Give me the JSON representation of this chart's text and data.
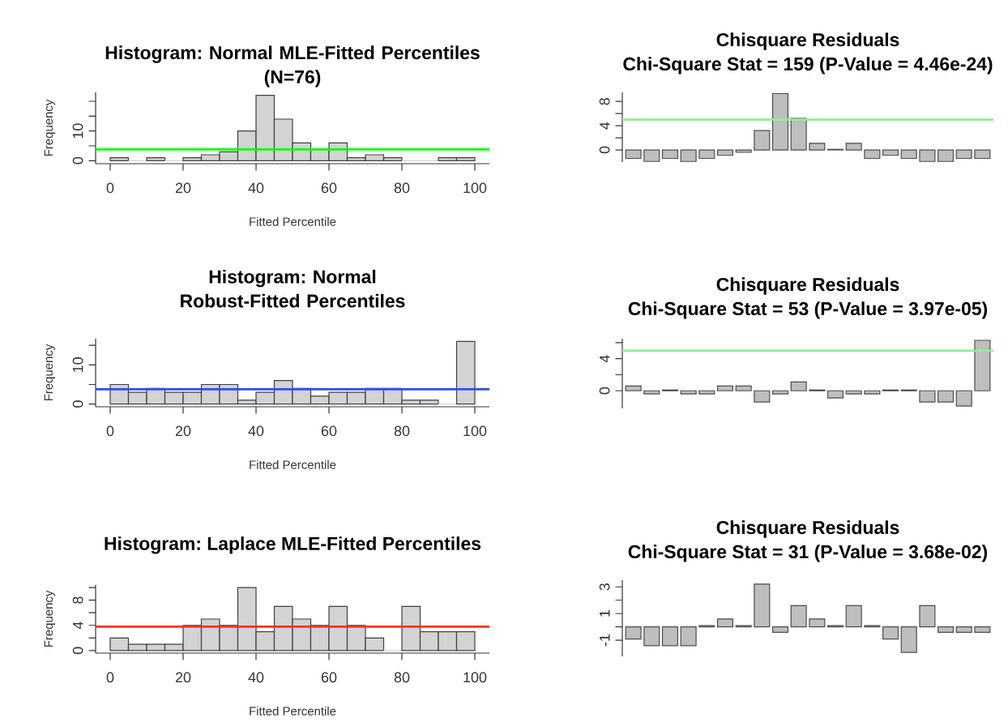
{
  "chart_data": [
    {
      "type": "histogram",
      "title": "Histogram: Normal MLE-Fitted Percentiles",
      "subtitle": "(N=76)",
      "xlabel": "Fitted Percentile",
      "ylabel": "Frequency",
      "color": "#d3d3d3",
      "bins": [
        0,
        5,
        10,
        15,
        20,
        25,
        30,
        35,
        40,
        45,
        50,
        55,
        60,
        65,
        70,
        75,
        80,
        85,
        90,
        95,
        100
      ],
      "values": [
        1,
        0,
        1,
        0,
        1,
        2,
        3,
        10,
        22,
        14,
        6,
        4,
        6,
        1,
        2,
        1,
        0,
        0,
        1,
        1
      ],
      "xlim": [
        -4,
        104
      ],
      "ylim": [
        -1,
        23
      ],
      "xticks": [
        0,
        20,
        40,
        60,
        80,
        100
      ],
      "yticks": [
        0,
        {
          "value": 5,
          "label": null
        },
        10,
        {
          "value": 15,
          "label": null
        },
        {
          "value": 20,
          "label": null
        }
      ],
      "ref_lines": [
        {
          "axis": "y",
          "value": 3.8,
          "color": "#00ff00"
        }
      ]
    },
    {
      "type": "bar",
      "title": "Chisquare Residuals",
      "subtitle": "Chi-Square Stat = 159  (P-Value = 4.46e-24)",
      "color": "#bebebe",
      "categories": [
        null,
        null,
        null,
        null,
        null,
        null,
        null,
        null,
        null,
        null,
        null,
        null,
        null,
        null,
        null,
        null,
        null,
        null,
        null,
        null
      ],
      "values": [
        -1.4,
        -1.9,
        -1.4,
        -1.9,
        -1.4,
        -0.9,
        -0.4,
        3.2,
        9.3,
        5.2,
        1.1,
        0.1,
        1.1,
        -1.4,
        -0.9,
        -1.4,
        -1.9,
        -1.9,
        -1.4,
        -1.4
      ],
      "ylim": [
        -2,
        9.5
      ],
      "yticks": [
        0,
        {
          "value": 2,
          "label": null
        },
        4,
        {
          "value": 6,
          "label": null
        },
        8
      ],
      "tick_labels": "y",
      "ref_lines": [
        {
          "axis": "y",
          "value": 5,
          "color": "#90ee90"
        }
      ]
    },
    {
      "type": "histogram",
      "title": "Histogram: Normal Robust-Fitted Percentiles",
      "xlabel": "Fitted Percentile",
      "ylabel": "Frequency",
      "color": "#d3d3d3",
      "bins": [
        0,
        5,
        10,
        15,
        20,
        25,
        30,
        35,
        40,
        45,
        50,
        55,
        60,
        65,
        70,
        75,
        80,
        85,
        90,
        95,
        100
      ],
      "values": [
        5,
        3,
        4,
        3,
        3,
        5,
        5,
        1,
        3,
        6,
        4,
        2,
        3,
        3,
        4,
        4,
        1,
        1,
        0,
        16
      ],
      "xlim": [
        -4,
        104
      ],
      "ylim": [
        -0.7,
        16.7
      ],
      "xticks": [
        0,
        20,
        40,
        60,
        80,
        100
      ],
      "yticks": [
        0,
        {
          "value": 5,
          "label": null
        },
        10,
        {
          "value": 15,
          "label": null
        }
      ],
      "ref_lines": [
        {
          "axis": "y",
          "value": 3.8,
          "color": "#2e4bff"
        }
      ]
    },
    {
      "type": "bar",
      "title": "Chisquare Residuals",
      "subtitle": "Chi-Square Stat = 53  (P-Value = 3.97e-05)",
      "color": "#bebebe",
      "categories": [
        null,
        null,
        null,
        null,
        null,
        null,
        null,
        null,
        null,
        null,
        null,
        null,
        null,
        null,
        null,
        null,
        null,
        null,
        null,
        null
      ],
      "values": [
        0.6,
        -0.4,
        0.1,
        -0.4,
        -0.4,
        0.6,
        0.6,
        -1.4,
        -0.4,
        1.1,
        0.1,
        -0.9,
        -0.4,
        -0.4,
        0.1,
        0.1,
        -1.4,
        -1.4,
        -1.9,
        6.3
      ],
      "ylim": [
        -2.2,
        6.5
      ],
      "yticks": [
        0,
        {
          "value": 2,
          "label": null
        },
        4,
        {
          "value": 6,
          "label": null
        }
      ],
      "tick_labels": "y",
      "ref_lines": [
        {
          "axis": "y",
          "value": 5,
          "color": "#90ee90"
        }
      ]
    },
    {
      "type": "histogram",
      "title": "Histogram: Laplace MLE-Fitted Percentiles",
      "xlabel": "Fitted Percentile",
      "ylabel": "Frequency",
      "color": "#d3d3d3",
      "bins": [
        0,
        5,
        10,
        15,
        20,
        25,
        30,
        35,
        40,
        45,
        50,
        55,
        60,
        65,
        70,
        75,
        80,
        85,
        90,
        95,
        100
      ],
      "values": [
        2,
        1,
        1,
        1,
        4,
        5,
        4,
        10,
        3,
        7,
        5,
        4,
        7,
        4,
        2,
        0,
        7,
        3,
        3,
        3
      ],
      "xlim": [
        -4,
        104
      ],
      "ylim": [
        -0.4,
        10.4
      ],
      "xticks": [
        0,
        20,
        40,
        60,
        80,
        100
      ],
      "yticks": [
        0,
        {
          "value": 2,
          "label": null
        },
        4,
        {
          "value": 6,
          "label": null
        },
        8,
        {
          "value": 10,
          "label": null
        }
      ],
      "ref_lines": [
        {
          "axis": "y",
          "value": 3.8,
          "color": "#ff3020"
        }
      ]
    },
    {
      "type": "bar",
      "title": "Chisquare Residuals",
      "subtitle": "Chi-Square Stat = 31  (P-Value = 3.68e-02)",
      "color": "#bebebe",
      "categories": [
        null,
        null,
        null,
        null,
        null,
        null,
        null,
        null,
        null,
        null,
        null,
        null,
        null,
        null,
        null,
        null,
        null,
        null,
        null,
        null
      ],
      "values": [
        -0.9,
        -1.4,
        -1.4,
        -1.4,
        0.1,
        0.6,
        0.1,
        3.2,
        -0.4,
        1.6,
        0.6,
        0.1,
        1.6,
        0.1,
        -0.9,
        -1.9,
        1.6,
        -0.4,
        -0.4,
        -0.4
      ],
      "ylim": [
        -2.2,
        3.5
      ],
      "yticks": [
        -1,
        {
          "value": 0,
          "label": null
        },
        1,
        {
          "value": 2,
          "label": null
        },
        3
      ],
      "tick_labels": "y"
    }
  ]
}
